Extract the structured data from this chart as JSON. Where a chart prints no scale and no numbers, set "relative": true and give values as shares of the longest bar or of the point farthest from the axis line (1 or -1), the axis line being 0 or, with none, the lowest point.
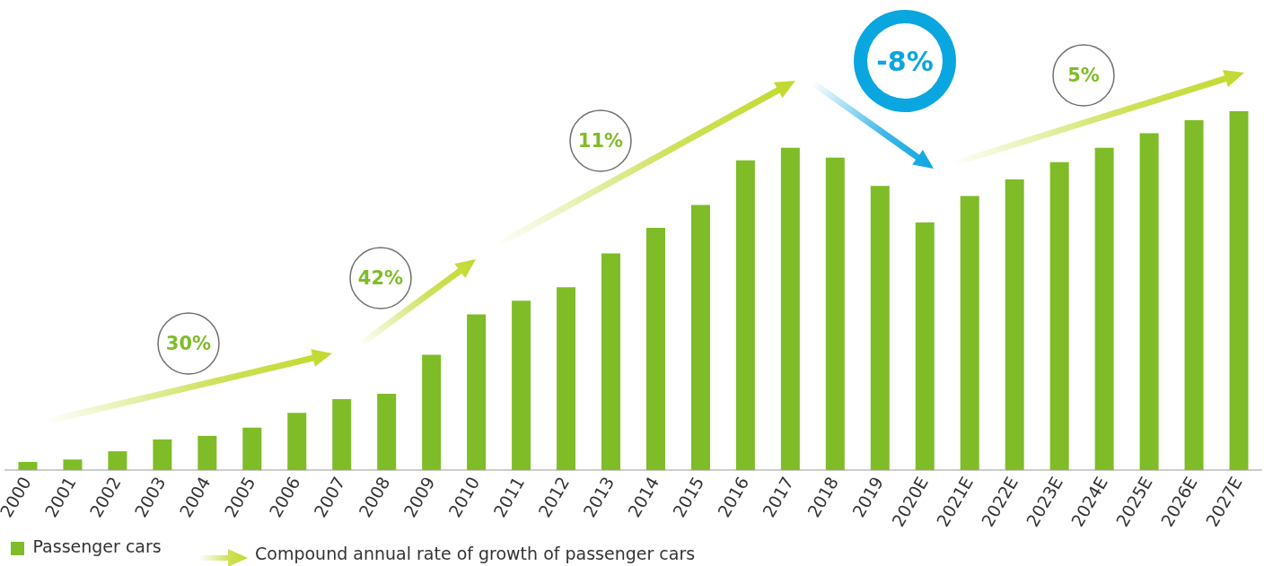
{
  "chart_data": {
    "type": "bar",
    "relative": true,
    "categories": [
      "2000",
      "2001",
      "2002",
      "2003",
      "2004",
      "2005",
      "2006",
      "2007",
      "2008",
      "2009",
      "2010",
      "2011",
      "2012",
      "2013",
      "2014",
      "2015",
      "2016",
      "2017",
      "2018",
      "2019",
      "2020E",
      "2021E",
      "2022E",
      "2023E",
      "2024E",
      "2025E",
      "2026E",
      "2027E"
    ],
    "series": [
      {
        "name": "Passenger cars",
        "color": "#7fbc28",
        "values": [
          0.023,
          0.03,
          0.053,
          0.086,
          0.096,
          0.119,
          0.16,
          0.198,
          0.213,
          0.322,
          0.434,
          0.472,
          0.51,
          0.604,
          0.675,
          0.739,
          0.863,
          0.898,
          0.871,
          0.792,
          0.69,
          0.764,
          0.81,
          0.858,
          0.898,
          0.939,
          0.975,
          1
        ]
      }
    ],
    "annotations": [
      "30%",
      "42%",
      "11%",
      "-8%",
      "5%",
      "Compound annual rate of growth of passenger cars"
    ],
    "legend": "bottom left",
    "grid": false
  }
}
